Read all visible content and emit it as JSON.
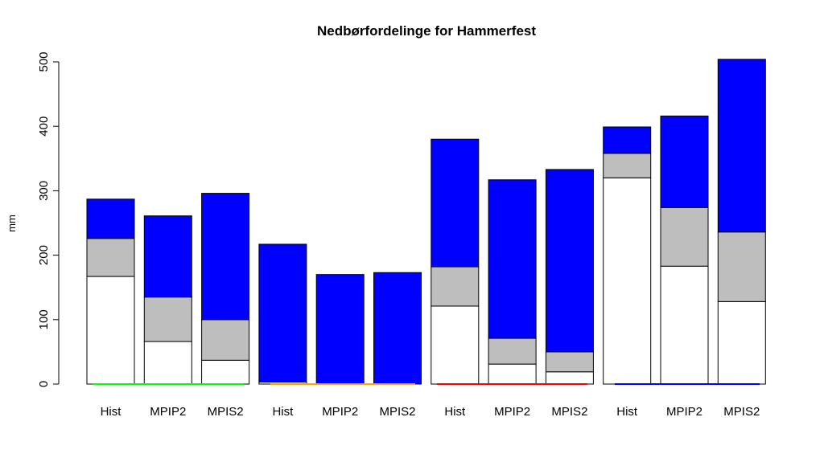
{
  "chart_data": {
    "type": "stacked_bar",
    "title": "Nedbørfordelinge for Hammerfest",
    "y_label": "mm",
    "categories": [
      "Hist",
      "MPIP2",
      "MPIS2",
      "Hist",
      "MPIP2",
      "MPIS2",
      "Hist",
      "MPIP2",
      "MPIS2",
      "Hist",
      "MPIP2",
      "MPIS2"
    ],
    "series": [
      {
        "color": "#ffffff",
        "values": [
          167,
          66,
          37,
          3,
          0,
          0,
          121,
          31,
          19,
          320,
          183,
          128
        ]
      },
      {
        "color": "#bebebe",
        "values": [
          59,
          69,
          63,
          0,
          0,
          0,
          61,
          40,
          31,
          38,
          91,
          108
        ]
      },
      {
        "color": "#0000ff",
        "values": [
          61,
          126,
          196,
          214,
          170,
          173,
          198,
          246,
          283,
          41,
          142,
          268
        ]
      }
    ],
    "ylim": [
      0,
      500
    ],
    "yticks": [
      0,
      100,
      200,
      300,
      400,
      500
    ]
  }
}
